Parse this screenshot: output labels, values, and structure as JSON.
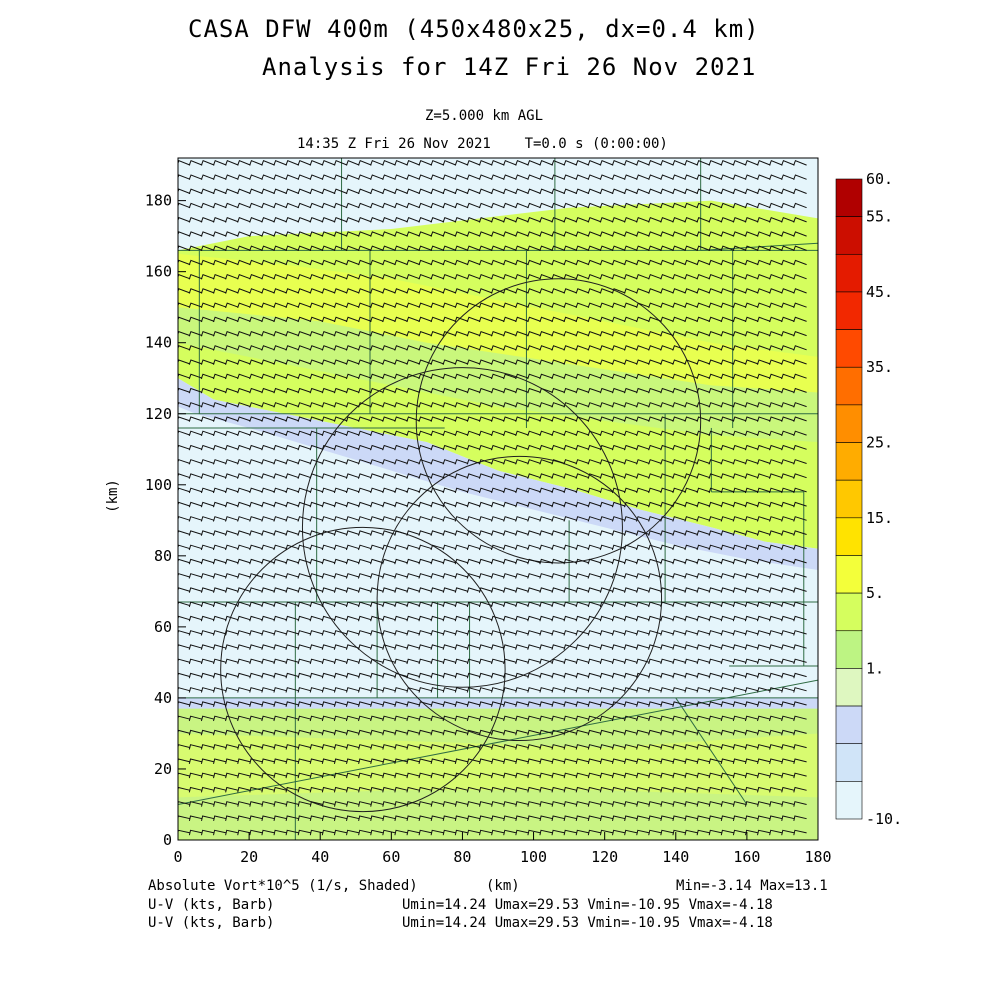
{
  "title_line1": "CASA DFW 400m (450x480x25, dx=0.4 km)",
  "title_line2": "Analysis for 14Z Fri 26 Nov 2021",
  "level_label": "Z=5.000 km AGL",
  "time_label": "14:35 Z Fri 26 Nov 2021    T=0.0 s (0:00:00)",
  "xlabel": "(km)",
  "ylabel": "(km)",
  "footer": {
    "field_label": "Absolute Vort*10^5 (1/s, Shaded)",
    "min_max": "Min=-3.14 Max=13.1",
    "wind_label_1": "U-V (kts, Barb)",
    "wind_label_2": "U-V (kts, Barb)",
    "wind_stats_1": "Umin=14.24 Umax=29.53 Vmin=-10.95 Vmax=-4.18",
    "wind_stats_2": "Umin=14.24 Umax=29.53 Vmin=-10.95 Vmax=-4.18"
  },
  "chart_data": {
    "type": "heatmap",
    "field": "Absolute Vort*10^5 (1/s)",
    "x_range_km": [
      0,
      180
    ],
    "y_range_km": [
      0,
      192
    ],
    "x_ticks": [
      "0",
      "20",
      "40",
      "60",
      "80",
      "100",
      "120",
      "140",
      "160",
      "180"
    ],
    "y_ticks": [
      "0",
      "20",
      "40",
      "60",
      "80",
      "100",
      "120",
      "140",
      "160",
      "180"
    ],
    "x_tick_values": [
      0,
      20,
      40,
      60,
      80,
      100,
      120,
      140,
      160,
      180
    ],
    "y_tick_values": [
      0,
      20,
      40,
      60,
      80,
      100,
      120,
      140,
      160,
      180
    ],
    "colorbar": {
      "labels": [
        "60.",
        "55.",
        "45.",
        "35.",
        "25.",
        "15.",
        "5.",
        "1.",
        "-10."
      ],
      "colors": [
        "#b00000",
        "#cc0e00",
        "#e41b00",
        "#f22800",
        "#ff4a00",
        "#ff6e00",
        "#ff8e00",
        "#ffac00",
        "#ffc800",
        "#ffe300",
        "#f3ff3a",
        "#d5fe5e",
        "#bdf483",
        "#def7c0",
        "#ccd9f7",
        "#d0e4f8",
        "#e5f5fb"
      ]
    },
    "wind_barb": {
      "u_min": 14.24,
      "u_max": 29.53,
      "v_min": -10.95,
      "v_max": -4.18
    },
    "field_min": -3.14,
    "field_max": 13.1,
    "radar_circles_km": [
      [
        107,
        118,
        40
      ],
      [
        80,
        88,
        45
      ],
      [
        96,
        68,
        40
      ],
      [
        52,
        48,
        40
      ]
    ]
  }
}
